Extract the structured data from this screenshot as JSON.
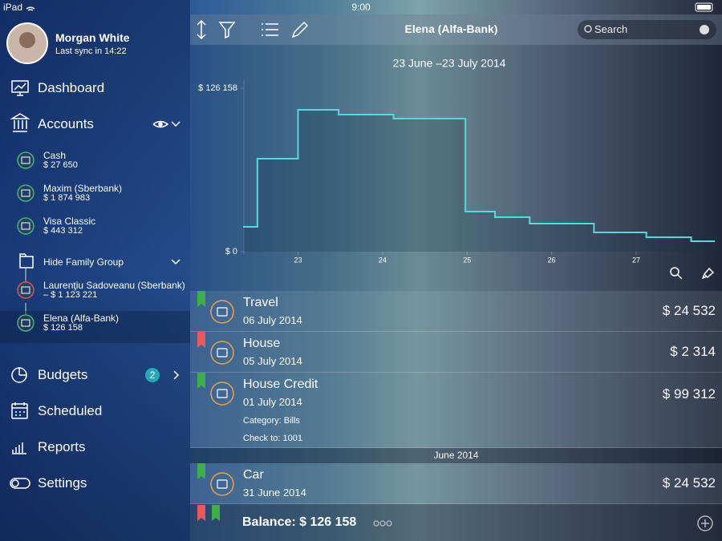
{
  "status_bar": {
    "device": "iPad",
    "time": "9:00"
  },
  "sidebar": {
    "user": {
      "name": "Morgan White",
      "sync": "Last sync in 14:22"
    },
    "nav_top": [
      "Dashboard",
      "Accounts"
    ],
    "accounts": [
      {
        "name": "Cash",
        "amount": "$ 27 650"
      },
      {
        "name": "Maxim (Sberbank)",
        "amount": "$ 1 874 983"
      },
      {
        "name": "Visa Classic",
        "amount": "$ 443 312"
      }
    ],
    "group": "Hide Family Group",
    "group_accounts": [
      {
        "name": "Laurenţiu Sadoveanu (Sberbank)",
        "amount": "– $ 1 123 221"
      },
      {
        "name": "Elena (Alfa-Bank)",
        "amount": "$ 126 158"
      }
    ],
    "nav_bottom": [
      {
        "label": "Budgets",
        "badge": 2
      },
      {
        "label": "Scheduled"
      },
      {
        "label": "Reports"
      },
      {
        "label": "Settings"
      }
    ]
  },
  "toolbar": {
    "title": "Elena (Alfa-Bank)",
    "search": "Search"
  },
  "chart_data": {
    "type": "step",
    "title": "23 June –23 July 2014",
    "color": "#5ad6e0",
    "x": [
      22.36,
      22.52,
      23,
      23.48,
      24.13,
      24.98,
      25.33,
      25.74,
      26.5,
      27.12,
      27.65
    ],
    "values": [
      19170,
      71740,
      109460,
      105750,
      102660,
      30920,
      26590,
      21640,
      14840,
      11130,
      8040
    ],
    "xlim": [
      22.36,
      27.92
    ],
    "xticks": [
      23,
      24,
      25,
      26,
      27
    ],
    "ylim": [
      0,
      126158
    ],
    "yticks": [
      {
        "value": 0,
        "label": "$ 0"
      },
      {
        "value": 126158,
        "label": "$ 126 158"
      }
    ]
  },
  "transactions": [
    {
      "name": "Travel",
      "date": "06 July 2014",
      "amount": "$ 24 532",
      "flag": "#3fae49"
    },
    {
      "name": "House",
      "date": "05 July 2014",
      "amount": "$ 2 314",
      "flag": "#e9585a"
    },
    {
      "name": "House Credit",
      "date": "01 July 2014",
      "amount": "$ 99 312",
      "flag": "#3fae49",
      "details": [
        "Category: Bills",
        "Check to: 1001"
      ]
    }
  ],
  "section": "June 2014",
  "transactions_2": [
    {
      "name": "Car",
      "date": "31 June 2014",
      "amount": "$ 24 532",
      "flag": "#3fae49"
    }
  ],
  "footer": {
    "balance": "Balance: $ 126 158"
  }
}
